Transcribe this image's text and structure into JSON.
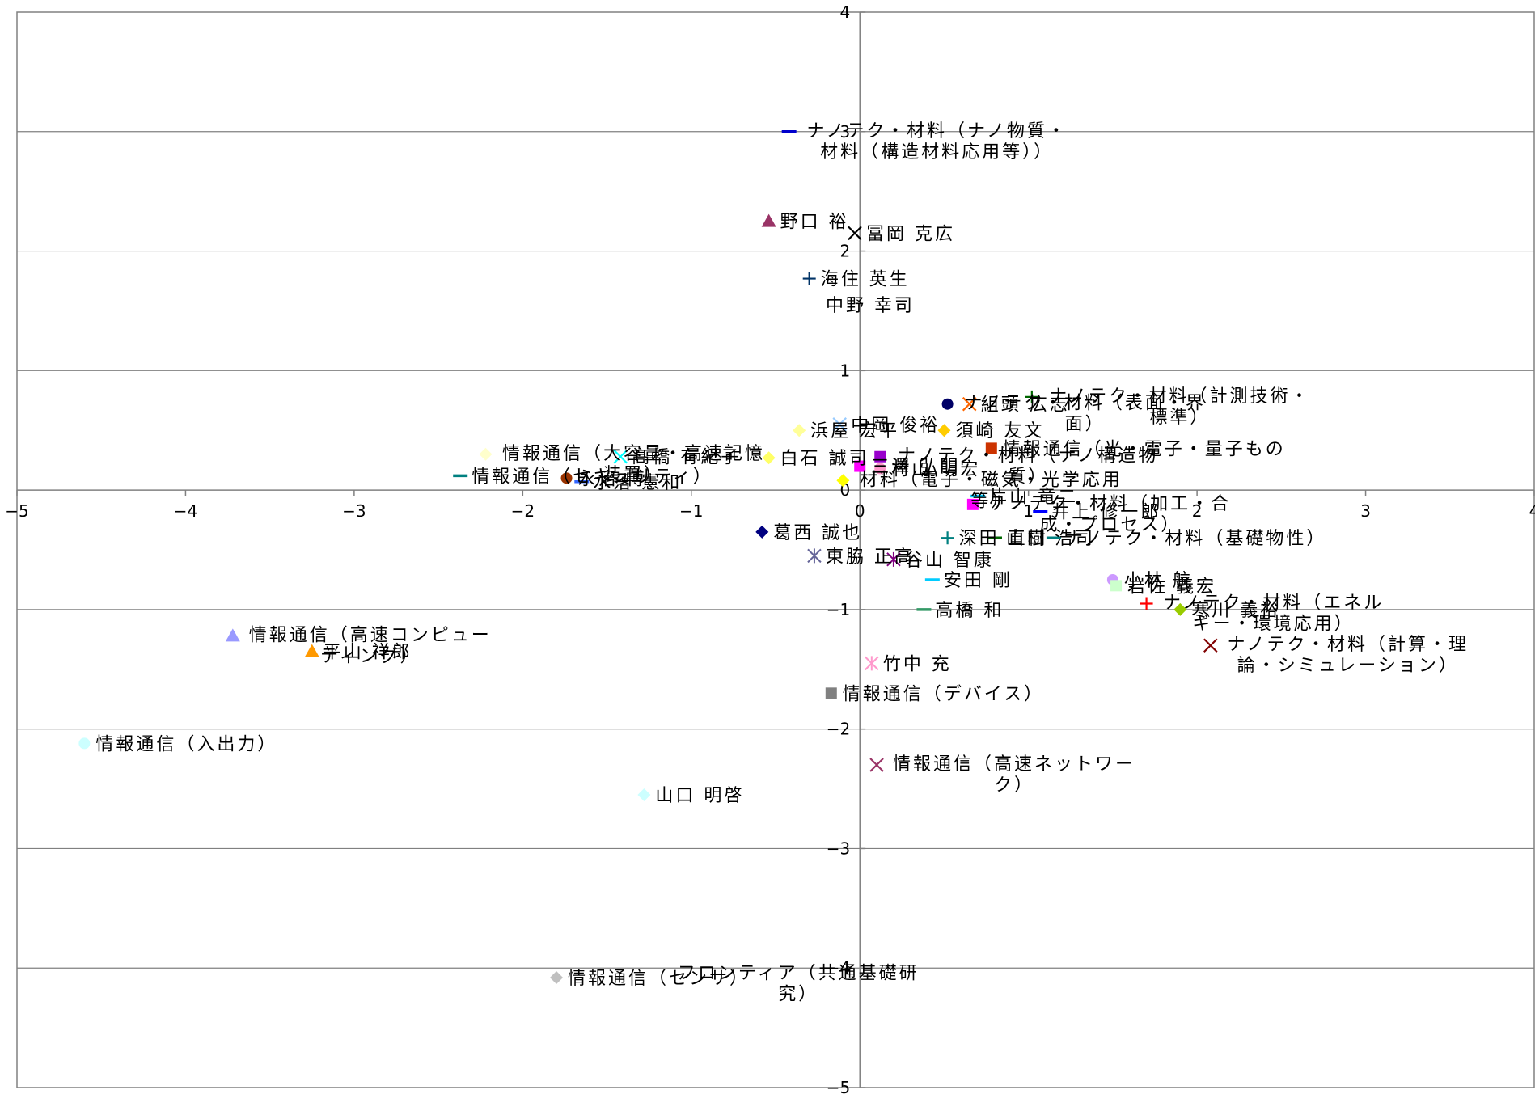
{
  "chart_data": {
    "type": "scatter",
    "title": "",
    "xlabel": "",
    "ylabel": "",
    "xlim": [
      -5,
      4
    ],
    "ylim": [
      -5,
      4
    ],
    "xticks": [
      -5,
      -4,
      -3,
      -2,
      -1,
      0,
      1,
      2,
      3,
      4
    ],
    "yticks": [
      -5,
      -4,
      -3,
      -2,
      -1,
      0,
      1,
      2,
      3,
      4
    ],
    "xtick_labels": [
      "−5",
      "−4",
      "−3",
      "−2",
      "−1",
      "0",
      "1",
      "2",
      "3",
      "4"
    ],
    "ytick_labels": [
      "−5",
      "−4",
      "−3",
      "−2",
      "−1",
      "0",
      "1",
      "2",
      "3",
      "4"
    ],
    "grid": "horizontal",
    "legend": "none",
    "points": [
      {
        "label": [
          "ナノテク・材料（ナノ物質・",
          "材料（構造材料応用等））"
        ],
        "x": -0.42,
        "y": 3.0,
        "marker": "dash",
        "color": "#0000cc"
      },
      {
        "label": [
          "野口 裕"
        ],
        "x": -0.54,
        "y": 2.25,
        "marker": "triangle",
        "color": "#993366"
      },
      {
        "label": [
          "冨岡 克広"
        ],
        "x": -0.03,
        "y": 2.15,
        "marker": "x",
        "color": "#000000"
      },
      {
        "label": [
          "海住 英生"
        ],
        "x": -0.3,
        "y": 1.77,
        "marker": "plus",
        "color": "#003366"
      },
      {
        "label": [
          "中野 幸司"
        ],
        "x": -0.27,
        "y": 1.55,
        "marker": "none",
        "color": "#000000"
      },
      {
        "label": [
          "ナノテク・材料（計測技術・",
          "標準）"
        ],
        "x": 1.02,
        "y": 0.78,
        "marker": "plus",
        "color": "#006600"
      },
      {
        "label": [
          "ナノテク・材料（表面・界",
          "面）"
        ],
        "x": 0.52,
        "y": 0.72,
        "marker": "circle",
        "color": "#000066"
      },
      {
        "label": [
          "組頭 広志"
        ],
        "x": 0.65,
        "y": 0.72,
        "marker": "x",
        "color": "#ff6600"
      },
      {
        "label": [
          "浜屋 宏平"
        ],
        "x": -0.36,
        "y": 0.5,
        "marker": "diamond",
        "color": "#ffff99"
      },
      {
        "label": [
          "中岡 俊裕"
        ],
        "x": -0.12,
        "y": 0.55,
        "marker": "x",
        "color": "#99ccff"
      },
      {
        "label": [
          "須崎 友文"
        ],
        "x": 0.5,
        "y": 0.5,
        "marker": "diamond",
        "color": "#ffcc00"
      },
      {
        "label": [
          "情報通信（大容量・高速記憶",
          "装置）"
        ],
        "x": -2.22,
        "y": 0.3,
        "marker": "diamond",
        "color": "#ffffcc"
      },
      {
        "label": [
          "髙橋 有紀子"
        ],
        "x": -1.42,
        "y": 0.28,
        "marker": "x",
        "color": "#00ffff"
      },
      {
        "label": [
          "白石 誠司"
        ],
        "x": -0.54,
        "y": 0.27,
        "marker": "diamond",
        "color": "#ffff66"
      },
      {
        "label": [
          "ナノテク・材料（ナノ構造物",
          "質）"
        ],
        "x": 0.12,
        "y": 0.28,
        "marker": "square",
        "color": "#9900cc"
      },
      {
        "label": [
          "情報通信（光・電子・量子もの"
        ],
        "x": 0.78,
        "y": 0.35,
        "marker": "square",
        "color": "#cc3300"
      },
      {
        "label": [
          "情報通信（セキュリティ）"
        ],
        "x": -2.37,
        "y": 0.12,
        "marker": "dash",
        "color": "#008080"
      },
      {
        "label": [
          "永沼 博"
        ],
        "x": -1.74,
        "y": 0.1,
        "marker": "circle",
        "color": "#993300"
      },
      {
        "label": [
          "水落 憲和"
        ],
        "x": -1.65,
        "y": 0.07,
        "marker": "dash",
        "color": "#3366ff"
      },
      {
        "label": [
          "村山 明宏"
        ],
        "x": 0.12,
        "y": 0.18,
        "marker": "circle",
        "color": "#ff99cc"
      },
      {
        "label": [
          "三澤 弘明"
        ],
        "x": 0.0,
        "y": 0.2,
        "marker": "square",
        "color": "#ff00ff"
      },
      {
        "label": [
          "材料（電子・磁気・光学応用",
          "等）"
        ],
        "x": -0.1,
        "y": 0.08,
        "marker": "diamond",
        "color": "#ffff00"
      },
      {
        "label": [
          "片山 竜二"
        ],
        "x": 0.7,
        "y": -0.05,
        "marker": "dash",
        "color": "#00ccff"
      },
      {
        "label": [
          "ナノテク・材料（加工・合",
          "成・プロセス）"
        ],
        "x": 0.67,
        "y": -0.12,
        "marker": "square",
        "color": "#ff00ff"
      },
      {
        "label": [
          "井上 修一郎"
        ],
        "x": 1.07,
        "y": -0.18,
        "marker": "dash",
        "color": "#0000ff"
      },
      {
        "label": [
          "葛西 誠也"
        ],
        "x": -0.58,
        "y": -0.35,
        "marker": "diamond",
        "color": "#000080"
      },
      {
        "label": [
          "深田 直樹"
        ],
        "x": 0.52,
        "y": -0.4,
        "marker": "plus",
        "color": "#008080"
      },
      {
        "label": [
          "山口 浩司"
        ],
        "x": 0.8,
        "y": -0.4,
        "marker": "dash",
        "color": "#006600"
      },
      {
        "label": [
          "ナノテク・材料（基礎物性）"
        ],
        "x": 1.15,
        "y": -0.4,
        "marker": "dash",
        "color": "#008080"
      },
      {
        "label": [
          "東脇 正高"
        ],
        "x": -0.27,
        "y": -0.55,
        "marker": "asterisk",
        "color": "#666699"
      },
      {
        "label": [
          "谷山 智康"
        ],
        "x": 0.2,
        "y": -0.58,
        "marker": "asterisk",
        "color": "#800080"
      },
      {
        "label": [
          "安田 剛"
        ],
        "x": 0.43,
        "y": -0.75,
        "marker": "dash",
        "color": "#00ccff"
      },
      {
        "label": [
          "小林 航"
        ],
        "x": 1.5,
        "y": -0.75,
        "marker": "circle",
        "color": "#cc99ff"
      },
      {
        "label": [
          "岩佐 義宏"
        ],
        "x": 1.52,
        "y": -0.8,
        "marker": "square",
        "color": "#ccffcc"
      },
      {
        "label": [
          "ナノテク・材料（エネル",
          "ギー・環境応用）"
        ],
        "x": 1.7,
        "y": -0.95,
        "marker": "plus",
        "color": "#ff0000"
      },
      {
        "label": [
          "高橋 和"
        ],
        "x": 0.38,
        "y": -1.0,
        "marker": "dash",
        "color": "#339966"
      },
      {
        "label": [
          "寒川 義裕"
        ],
        "x": 1.9,
        "y": -1.0,
        "marker": "diamond",
        "color": "#99cc00"
      },
      {
        "label": [
          "ナノテク・材料（計算・理",
          "論・シミュレーション）"
        ],
        "x": 2.08,
        "y": -1.3,
        "marker": "x",
        "color": "#800000"
      },
      {
        "label": [
          "情報通信（高速コンピュー",
          "ティング）"
        ],
        "x": -3.72,
        "y": -1.22,
        "marker": "triangle",
        "color": "#9999ff"
      },
      {
        "label": [
          "平山 祥郎"
        ],
        "x": -3.25,
        "y": -1.35,
        "marker": "triangle",
        "color": "#ff9900"
      },
      {
        "label": [
          "竹中 充"
        ],
        "x": 0.07,
        "y": -1.45,
        "marker": "asterisk",
        "color": "#ff99cc"
      },
      {
        "label": [
          "情報通信（デバイス）"
        ],
        "x": -0.17,
        "y": -1.7,
        "marker": "square",
        "color": "#808080"
      },
      {
        "label": [
          "情報通信（入出力）"
        ],
        "x": -4.6,
        "y": -2.12,
        "marker": "circle",
        "color": "#ccffff"
      },
      {
        "label": [
          "情報通信（高速ネットワー",
          "ク）"
        ],
        "x": 0.1,
        "y": -2.3,
        "marker": "x",
        "color": "#993366"
      },
      {
        "label": [
          "山口 明啓"
        ],
        "x": -1.28,
        "y": -2.55,
        "marker": "diamond",
        "color": "#ccffff"
      },
      {
        "label": [
          "情報通信（センサ）"
        ],
        "x": -1.8,
        "y": -4.08,
        "marker": "diamond",
        "color": "#c0c0c0"
      },
      {
        "label": [
          "フロンティア（共通基礎研",
          "究）"
        ],
        "x": -1.18,
        "y": -4.05,
        "marker": "none",
        "color": "#000000"
      }
    ]
  }
}
